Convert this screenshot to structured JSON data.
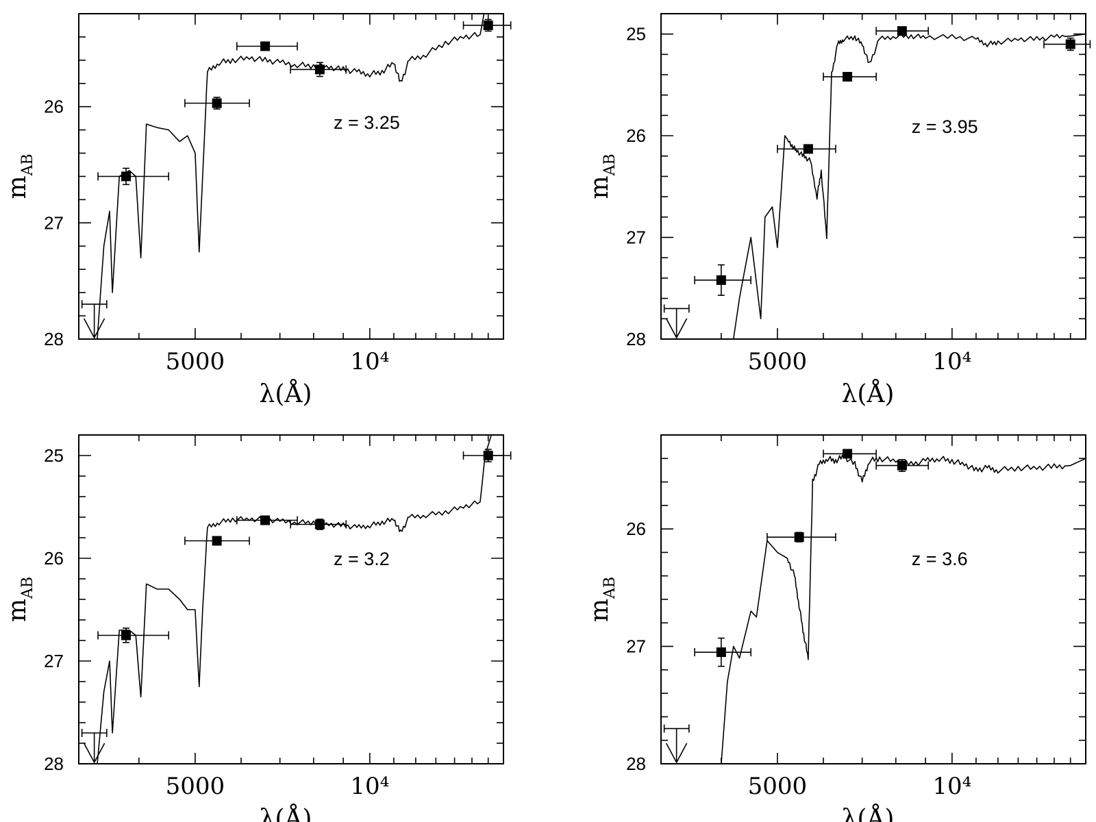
{
  "chart_data": [
    {
      "type": "scatter",
      "annotation": "z = 3.25",
      "xlabel": "λ(Å)",
      "ylabel": "m_AB",
      "x_scale": "log",
      "xlim": [
        3150,
        17000
      ],
      "ylim": [
        28.0,
        25.2
      ],
      "y_reversed": true,
      "xticks": [
        {
          "value": 5000,
          "label": "5000"
        },
        {
          "value": 10000,
          "label": "10⁴"
        }
      ],
      "yticks": [
        {
          "value": 26,
          "label": "26"
        },
        {
          "value": 27,
          "label": "27"
        },
        {
          "value": 28,
          "label": "28"
        }
      ],
      "photometry": [
        {
          "x": 3800,
          "y": 26.6,
          "xerr": [
            3400,
            4500
          ],
          "yerr": 0.07
        },
        {
          "x": 5450,
          "y": 25.97,
          "xerr": [
            4800,
            6200
          ],
          "yerr": 0.05
        },
        {
          "x": 6600,
          "y": 25.48,
          "xerr": [
            5900,
            7500
          ],
          "yerr": 0.03
        },
        {
          "x": 8200,
          "y": 25.68,
          "xerr": [
            7300,
            9100
          ],
          "yerr": 0.06
        },
        {
          "x": 16000,
          "y": 25.3,
          "xerr": [
            14500,
            17500
          ],
          "yerr": 0.05
        }
      ],
      "upper_limits": [
        {
          "x": 3350,
          "y": 27.7,
          "xerr": [
            3190,
            3520
          ]
        }
      ],
      "model_spectrum": [
        [
          3390,
          28.0
        ],
        [
          3480,
          27.2
        ],
        [
          3560,
          26.9
        ],
        [
          3600,
          27.6
        ],
        [
          3700,
          26.6
        ],
        [
          3850,
          26.55
        ],
        [
          3950,
          26.6
        ],
        [
          4030,
          27.3
        ],
        [
          4120,
          26.15
        ],
        [
          4300,
          26.18
        ],
        [
          4500,
          26.2
        ],
        [
          4700,
          26.3
        ],
        [
          4850,
          26.25
        ],
        [
          5000,
          26.4
        ],
        [
          5080,
          27.25
        ],
        [
          5150,
          26.6
        ],
        [
          5250,
          25.7
        ],
        [
          5500,
          25.62
        ],
        [
          5800,
          25.6
        ],
        [
          6200,
          25.58
        ],
        [
          6600,
          25.6
        ],
        [
          7000,
          25.62
        ],
        [
          7500,
          25.64
        ],
        [
          8000,
          25.65
        ],
        [
          8500,
          25.66
        ],
        [
          9000,
          25.68
        ],
        [
          9500,
          25.7
        ],
        [
          10000,
          25.72
        ],
        [
          10500,
          25.7
        ],
        [
          11000,
          25.62
        ],
        [
          11300,
          25.8
        ],
        [
          11700,
          25.6
        ],
        [
          12500,
          25.55
        ],
        [
          13500,
          25.45
        ],
        [
          14500,
          25.4
        ],
        [
          15500,
          25.38
        ],
        [
          16000,
          25.0
        ]
      ]
    },
    {
      "type": "scatter",
      "annotation": "z = 3.95",
      "xlabel": "λ(Å)",
      "ylabel": "m_AB",
      "x_scale": "log",
      "xlim": [
        3150,
        17000
      ],
      "ylim": [
        28.0,
        24.8
      ],
      "y_reversed": true,
      "xticks": [
        {
          "value": 5000,
          "label": "5000"
        },
        {
          "value": 10000,
          "label": "10⁴"
        }
      ],
      "yticks": [
        {
          "value": 25,
          "label": "25"
        },
        {
          "value": 26,
          "label": "26"
        },
        {
          "value": 27,
          "label": "27"
        },
        {
          "value": 28,
          "label": "28"
        }
      ],
      "photometry": [
        {
          "x": 4000,
          "y": 27.42,
          "xerr": [
            3600,
            4500
          ],
          "yerr": 0.15
        },
        {
          "x": 5650,
          "y": 26.13,
          "xerr": [
            5000,
            6300
          ],
          "yerr": 0.04
        },
        {
          "x": 6600,
          "y": 25.42,
          "xerr": [
            6000,
            7400
          ],
          "yerr": 0.03
        },
        {
          "x": 8200,
          "y": 24.97,
          "xerr": [
            7400,
            9100
          ],
          "yerr": 0.04
        },
        {
          "x": 16000,
          "y": 25.1,
          "xerr": [
            14400,
            17300
          ],
          "yerr": 0.06
        }
      ],
      "upper_limits": [
        {
          "x": 3350,
          "y": 27.7,
          "xerr": [
            3190,
            3520
          ]
        }
      ],
      "model_spectrum": [
        [
          4200,
          28.0
        ],
        [
          4300,
          27.6
        ],
        [
          4500,
          27.0
        ],
        [
          4680,
          27.8
        ],
        [
          4760,
          26.8
        ],
        [
          4900,
          26.7
        ],
        [
          5000,
          27.1
        ],
        [
          5150,
          26.0
        ],
        [
          5300,
          26.1
        ],
        [
          5400,
          26.15
        ],
        [
          5550,
          26.2
        ],
        [
          5700,
          26.25
        ],
        [
          5850,
          26.6
        ],
        [
          5950,
          26.35
        ],
        [
          6080,
          27.0
        ],
        [
          6200,
          25.4
        ],
        [
          6350,
          25.1
        ],
        [
          6500,
          25.05
        ],
        [
          6800,
          25.03
        ],
        [
          7000,
          25.1
        ],
        [
          7200,
          25.3
        ],
        [
          7500,
          25.05
        ],
        [
          8000,
          25.02
        ],
        [
          8500,
          25.02
        ],
        [
          9000,
          25.03
        ],
        [
          10000,
          25.03
        ],
        [
          11000,
          25.05
        ],
        [
          11500,
          25.1
        ],
        [
          12000,
          25.08
        ],
        [
          13000,
          25.05
        ],
        [
          14000,
          25.05
        ],
        [
          15000,
          25.03
        ],
        [
          16000,
          25.02
        ],
        [
          17000,
          25.0
        ],
        [
          17200,
          24.8
        ]
      ]
    },
    {
      "type": "scatter",
      "annotation": "z = 3.2",
      "xlabel": "λ(Å)",
      "ylabel": "m_AB",
      "x_scale": "log",
      "xlim": [
        3150,
        17000
      ],
      "ylim": [
        28.0,
        24.8
      ],
      "y_reversed": true,
      "xticks": [
        {
          "value": 5000,
          "label": "5000"
        },
        {
          "value": 10000,
          "label": "10⁴"
        }
      ],
      "yticks": [
        {
          "value": 25,
          "label": "25"
        },
        {
          "value": 26,
          "label": "26"
        },
        {
          "value": 27,
          "label": "27"
        },
        {
          "value": 28,
          "label": "28"
        }
      ],
      "photometry": [
        {
          "x": 3800,
          "y": 26.75,
          "xerr": [
            3400,
            4500
          ],
          "yerr": 0.07
        },
        {
          "x": 5450,
          "y": 25.83,
          "xerr": [
            4800,
            6200
          ],
          "yerr": 0.04
        },
        {
          "x": 6600,
          "y": 25.63,
          "xerr": [
            5900,
            7500
          ],
          "yerr": 0.03
        },
        {
          "x": 8200,
          "y": 25.67,
          "xerr": [
            7300,
            9100
          ],
          "yerr": 0.05
        },
        {
          "x": 16000,
          "y": 25.0,
          "xerr": [
            14500,
            17500
          ],
          "yerr": 0.06
        }
      ],
      "upper_limits": [
        {
          "x": 3350,
          "y": 27.7,
          "xerr": [
            3190,
            3520
          ]
        }
      ],
      "model_spectrum": [
        [
          3390,
          28.0
        ],
        [
          3480,
          27.3
        ],
        [
          3560,
          27.0
        ],
        [
          3600,
          27.7
        ],
        [
          3700,
          26.7
        ],
        [
          3850,
          26.7
        ],
        [
          3950,
          26.75
        ],
        [
          4030,
          27.35
        ],
        [
          4120,
          26.25
        ],
        [
          4300,
          26.3
        ],
        [
          4500,
          26.3
        ],
        [
          4700,
          26.4
        ],
        [
          4850,
          26.5
        ],
        [
          5000,
          26.5
        ],
        [
          5080,
          27.25
        ],
        [
          5150,
          26.5
        ],
        [
          5250,
          25.7
        ],
        [
          5500,
          25.65
        ],
        [
          5800,
          25.62
        ],
        [
          6200,
          25.62
        ],
        [
          6600,
          25.62
        ],
        [
          7000,
          25.64
        ],
        [
          7500,
          25.65
        ],
        [
          8000,
          25.65
        ],
        [
          8500,
          25.67
        ],
        [
          9000,
          25.68
        ],
        [
          9500,
          25.7
        ],
        [
          10000,
          25.68
        ],
        [
          10500,
          25.65
        ],
        [
          11000,
          25.62
        ],
        [
          11300,
          25.75
        ],
        [
          11700,
          25.6
        ],
        [
          12500,
          25.58
        ],
        [
          13500,
          25.55
        ],
        [
          14500,
          25.5
        ],
        [
          15500,
          25.45
        ],
        [
          15800,
          25.0
        ],
        [
          16200,
          24.8
        ]
      ]
    },
    {
      "type": "scatter",
      "annotation": "z = 3.6",
      "xlabel": "λ(Å)",
      "ylabel": "m_AB",
      "x_scale": "log",
      "xlim": [
        3150,
        17000
      ],
      "ylim": [
        28.0,
        25.2
      ],
      "y_reversed": true,
      "xticks": [
        {
          "value": 5000,
          "label": "5000"
        },
        {
          "value": 10000,
          "label": "10⁴"
        }
      ],
      "yticks": [
        {
          "value": 26,
          "label": "26"
        },
        {
          "value": 27,
          "label": "27"
        },
        {
          "value": 28,
          "label": "28"
        }
      ],
      "photometry": [
        {
          "x": 4000,
          "y": 27.05,
          "xerr": [
            3600,
            4500
          ],
          "yerr": 0.12
        },
        {
          "x": 5450,
          "y": 26.07,
          "xerr": [
            4800,
            6300
          ],
          "yerr": 0.04
        },
        {
          "x": 6600,
          "y": 25.36,
          "xerr": [
            6000,
            7400
          ],
          "yerr": 0.03
        },
        {
          "x": 8200,
          "y": 25.46,
          "xerr": [
            7400,
            9100
          ],
          "yerr": 0.05
        }
      ],
      "upper_limits": [
        {
          "x": 3350,
          "y": 27.7,
          "xerr": [
            3190,
            3520
          ]
        }
      ],
      "model_spectrum": [
        [
          4000,
          28.0
        ],
        [
          4100,
          27.3
        ],
        [
          4200,
          27.0
        ],
        [
          4300,
          27.1
        ],
        [
          4400,
          26.9
        ],
        [
          4500,
          26.7
        ],
        [
          4600,
          26.75
        ],
        [
          4800,
          26.1
        ],
        [
          4900,
          26.15
        ],
        [
          5000,
          26.2
        ],
        [
          5200,
          26.25
        ],
        [
          5350,
          26.4
        ],
        [
          5450,
          26.65
        ],
        [
          5550,
          26.9
        ],
        [
          5650,
          27.1
        ],
        [
          5750,
          25.6
        ],
        [
          5900,
          25.45
        ],
        [
          6100,
          25.4
        ],
        [
          6300,
          25.42
        ],
        [
          6500,
          25.38
        ],
        [
          6800,
          25.45
        ],
        [
          7000,
          25.6
        ],
        [
          7200,
          25.42
        ],
        [
          7500,
          25.4
        ],
        [
          8000,
          25.42
        ],
        [
          8500,
          25.45
        ],
        [
          9000,
          25.42
        ],
        [
          9500,
          25.4
        ],
        [
          10000,
          25.42
        ],
        [
          10500,
          25.45
        ],
        [
          11000,
          25.5
        ],
        [
          11500,
          25.48
        ],
        [
          12000,
          25.5
        ],
        [
          13000,
          25.48
        ],
        [
          14000,
          25.48
        ],
        [
          15000,
          25.47
        ],
        [
          16000,
          25.46
        ],
        [
          17000,
          25.4
        ],
        [
          17100,
          25.2
        ]
      ]
    }
  ]
}
